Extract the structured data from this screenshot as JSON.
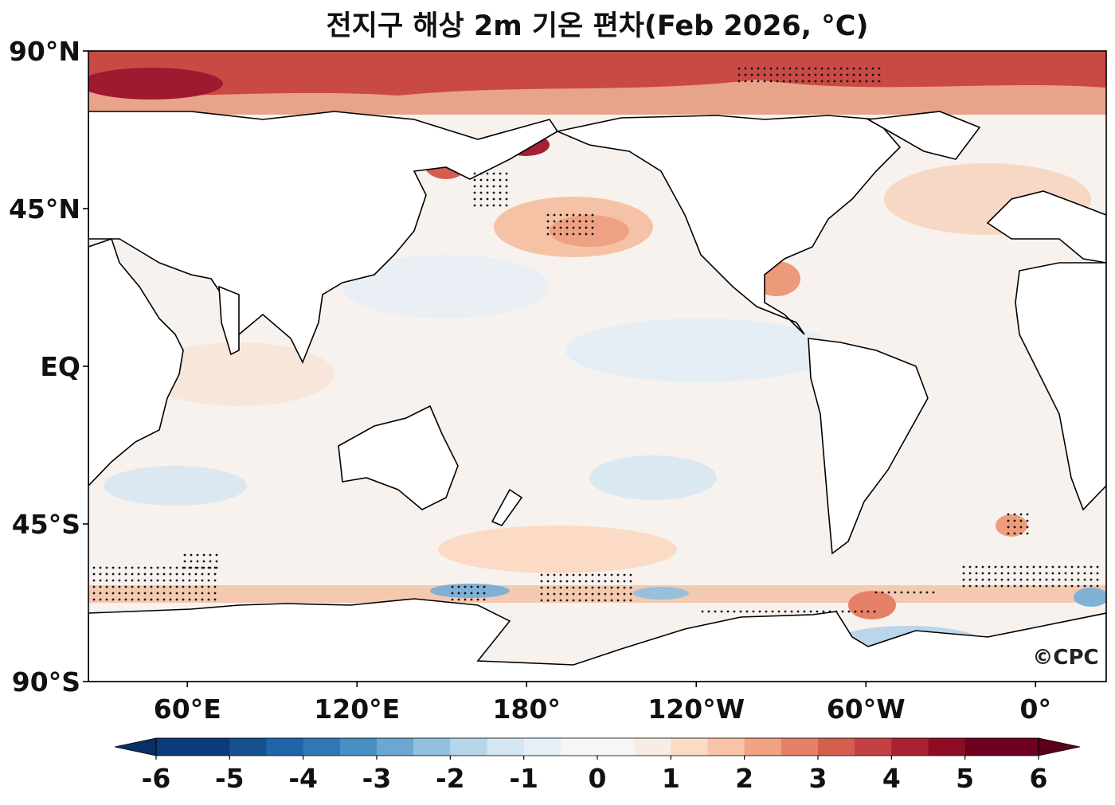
{
  "title": "전지구 해상 2m 기온 편차(Feb 2026, °C)",
  "map": {
    "lat_labels": [
      "90°N",
      "45°N",
      "EQ",
      "45°S",
      "90°S"
    ],
    "lat_values": [
      90,
      45,
      0,
      -45,
      -90
    ],
    "lon_labels": [
      "60°E",
      "120°E",
      "180°",
      "120°W",
      "60°W",
      "0°"
    ],
    "lon_values": [
      60,
      120,
      180,
      240,
      300,
      360
    ],
    "lon_range": [
      25,
      385
    ],
    "lat_range": [
      -90,
      90
    ],
    "watermark": "©CPC"
  },
  "colorbar": {
    "ticks": [
      "-6",
      "-5",
      "-4",
      "-3",
      "-2",
      "-1",
      "0",
      "1",
      "2",
      "3",
      "4",
      "5",
      "6"
    ],
    "range": [
      -6,
      6
    ],
    "step": 0.5,
    "extend": "both",
    "colors": [
      "#0b3b78",
      "#16518f",
      "#1f64a8",
      "#2f77b6",
      "#4a8fc3",
      "#6aa7d1",
      "#92c2de",
      "#b5d6e9",
      "#d3e6f1",
      "#e6eff5",
      "#f6f6f5",
      "#f8ede6",
      "#fbdbc6",
      "#f8c3a6",
      "#f1a383",
      "#e58166",
      "#d45f4f",
      "#c24142",
      "#ab2233",
      "#8e0d25",
      "#6d011f"
    ],
    "under_color": "#082f66",
    "over_color": "#5a0119"
  },
  "legend": {
    "stipple_note": ""
  }
}
